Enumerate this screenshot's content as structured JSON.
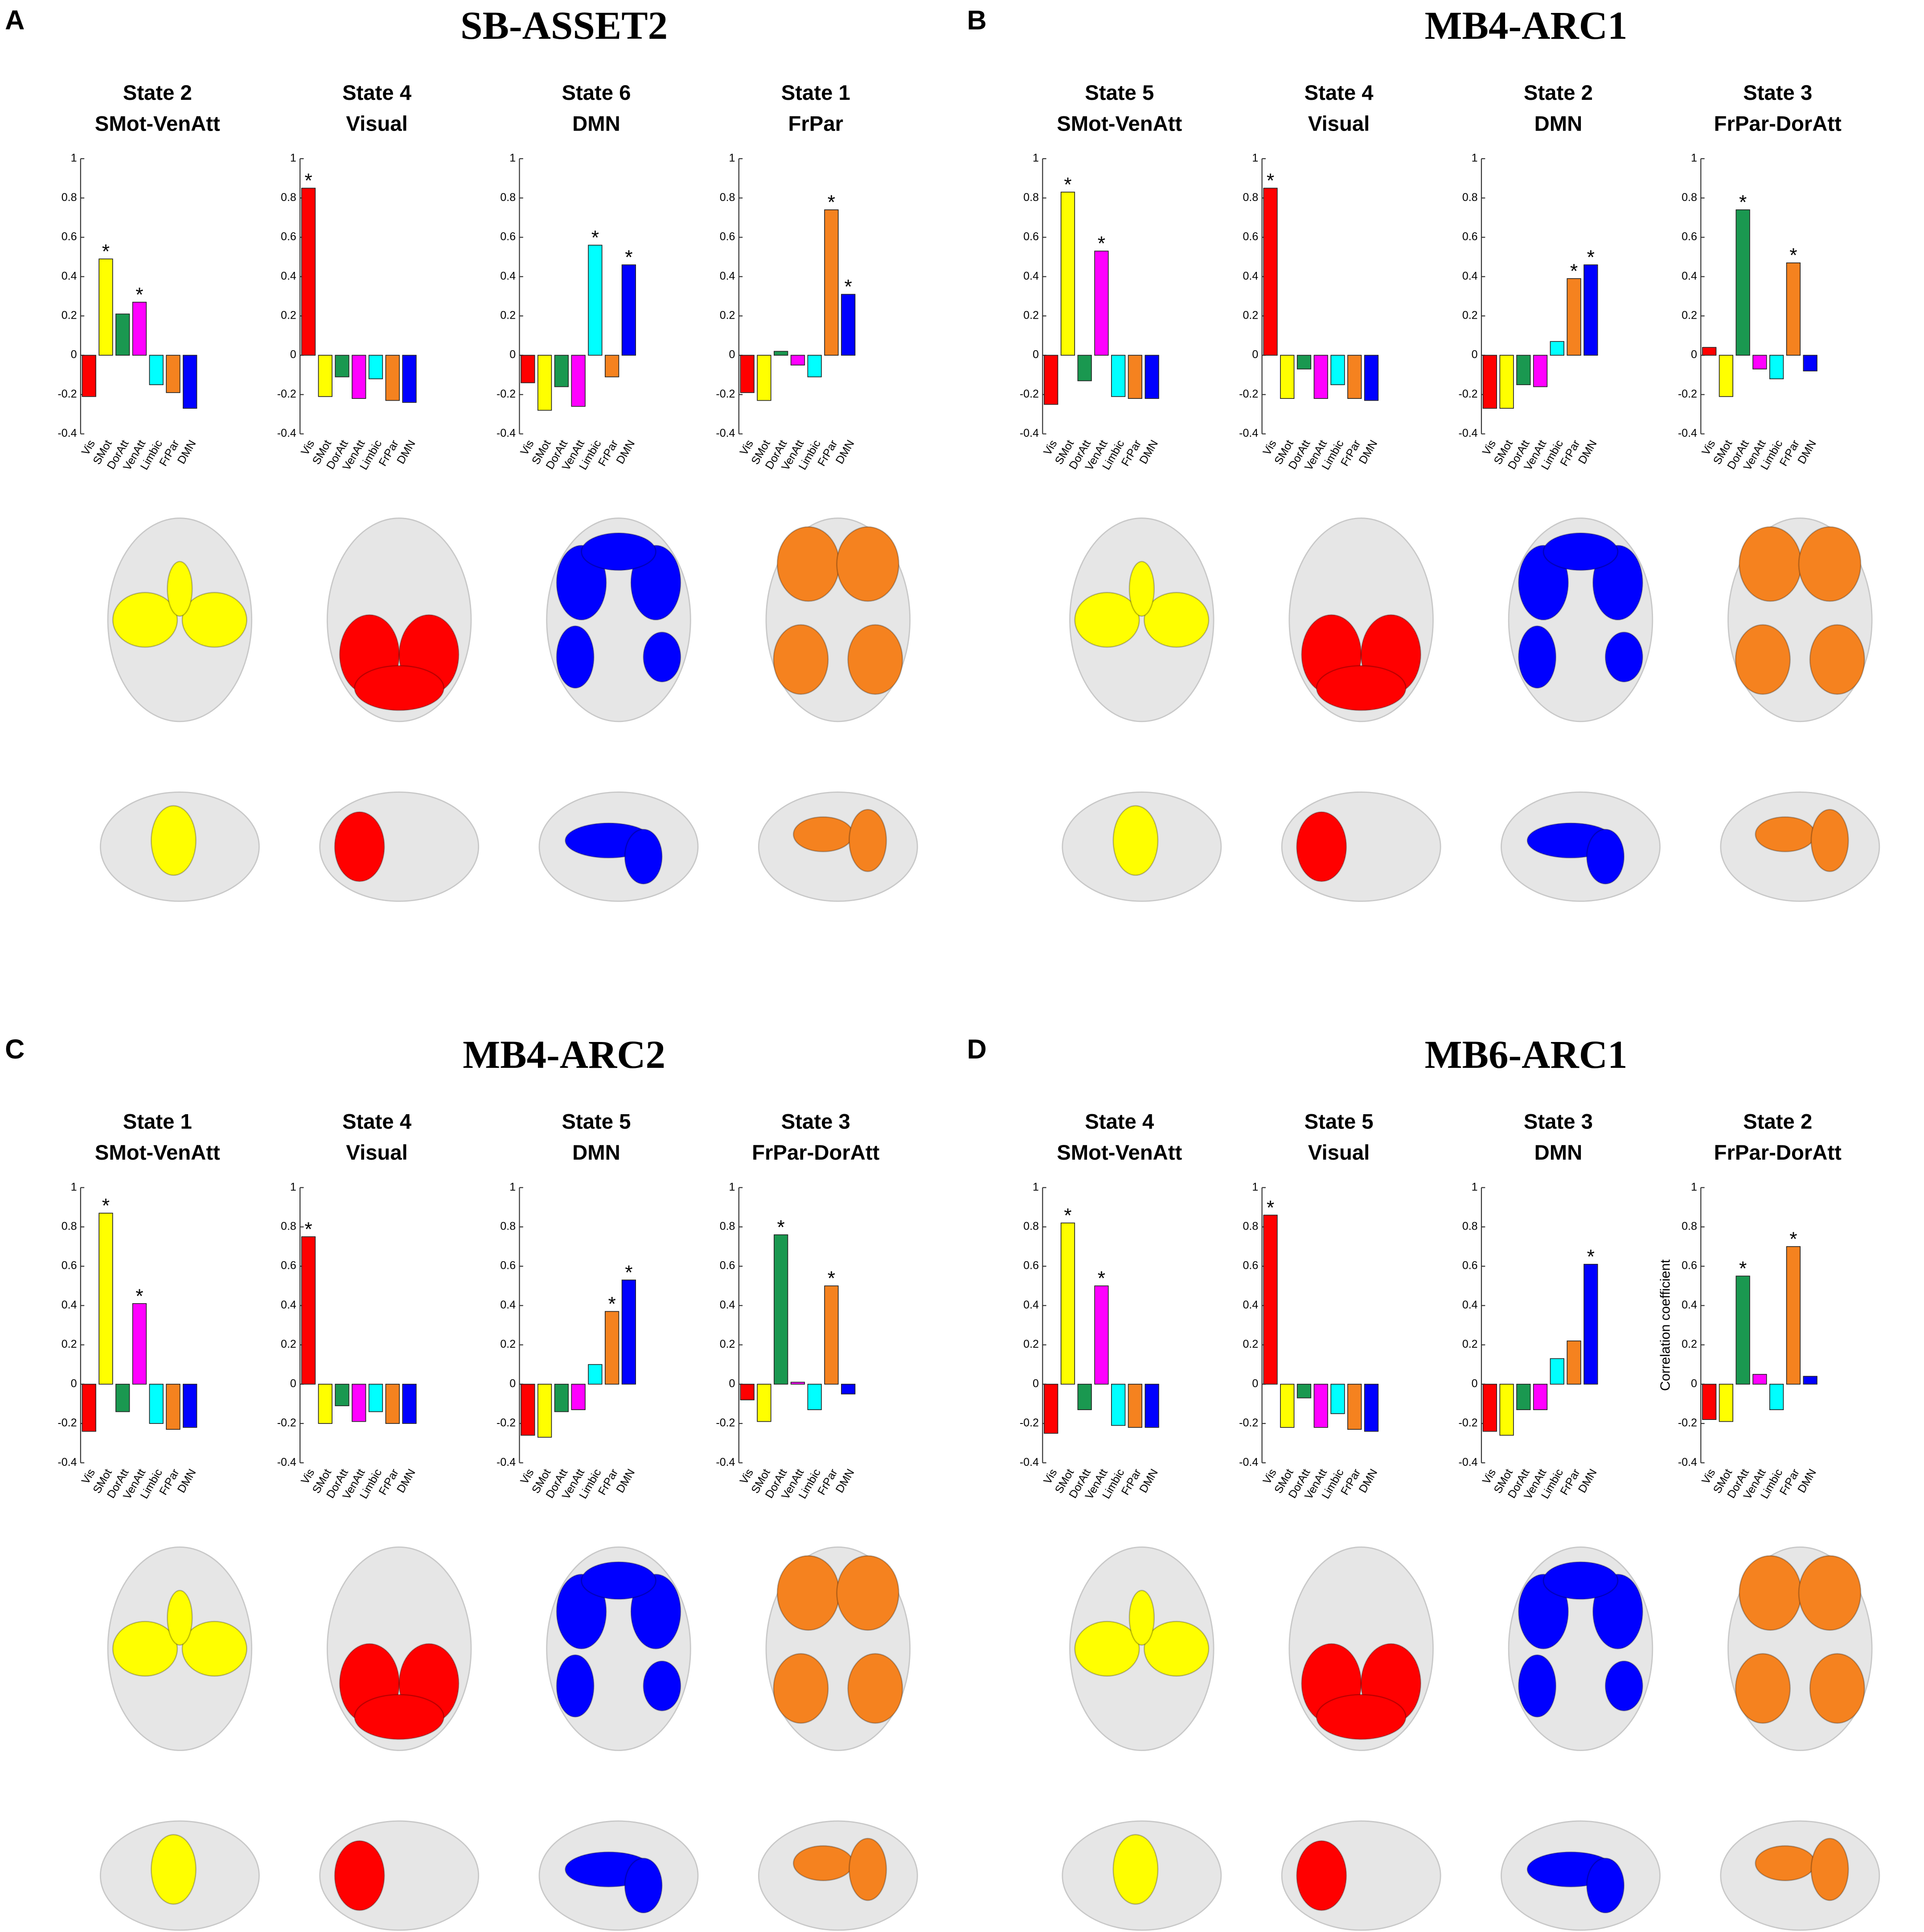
{
  "panels": [
    {
      "letter": "A",
      "title": "SB-ASSET2"
    },
    {
      "letter": "B",
      "title": "MB4-ARC1"
    },
    {
      "letter": "C",
      "title": "MB4-ARC2"
    },
    {
      "letter": "D",
      "title": "MB6-ARC1"
    }
  ],
  "chart_data": [
    {
      "type": "bar",
      "title": "State 2",
      "subtitle": "SMot-VenAtt",
      "categories": [
        "Vis",
        "SMot",
        "DorAtt",
        "VenAtt",
        "Limbic",
        "FrPar",
        "DMN"
      ],
      "values": [
        -0.21,
        0.49,
        0.21,
        0.27,
        -0.15,
        -0.19,
        -0.27
      ],
      "colors": [
        "#ff0000",
        "#ffff00",
        "#1a9850",
        "#ff00ff",
        "#00ffff",
        "#f5821f",
        "#0000ff"
      ],
      "annotation": "*",
      "marked": [
        1,
        3
      ],
      "ylim": [
        -0.4,
        1
      ],
      "yticks": [
        -0.4,
        -0.2,
        0,
        0.2,
        0.4,
        0.6,
        0.8,
        1
      ]
    },
    {
      "type": "bar",
      "title": "State 4",
      "subtitle": "Visual",
      "categories": [
        "Vis",
        "SMot",
        "DorAtt",
        "VenAtt",
        "Limbic",
        "FrPar",
        "DMN"
      ],
      "values": [
        0.85,
        -0.21,
        -0.11,
        -0.22,
        -0.12,
        -0.23,
        -0.24
      ],
      "colors": [
        "#ff0000",
        "#ffff00",
        "#1a9850",
        "#ff00ff",
        "#00ffff",
        "#f5821f",
        "#0000ff"
      ],
      "annotation": "*",
      "marked": [
        0
      ],
      "ylim": [
        -0.4,
        1
      ],
      "yticks": [
        -0.4,
        -0.2,
        0,
        0.2,
        0.4,
        0.6,
        0.8,
        1
      ]
    },
    {
      "type": "bar",
      "title": "State 6",
      "subtitle": "DMN",
      "categories": [
        "Vis",
        "SMot",
        "DorAtt",
        "VenAtt",
        "Limbic",
        "FrPar",
        "DMN"
      ],
      "values": [
        -0.14,
        -0.28,
        -0.16,
        -0.26,
        0.56,
        -0.11,
        0.46
      ],
      "colors": [
        "#ff0000",
        "#ffff00",
        "#1a9850",
        "#ff00ff",
        "#00ffff",
        "#f5821f",
        "#0000ff"
      ],
      "annotation": "*",
      "marked": [
        4,
        6
      ],
      "ylim": [
        -0.4,
        1
      ],
      "yticks": [
        -0.4,
        -0.2,
        0,
        0.2,
        0.4,
        0.6,
        0.8,
        1
      ]
    },
    {
      "type": "bar",
      "title": "State 1",
      "subtitle": "FrPar",
      "categories": [
        "Vis",
        "SMot",
        "DorAtt",
        "VenAtt",
        "Limbic",
        "FrPar",
        "DMN"
      ],
      "values": [
        -0.19,
        -0.23,
        0.02,
        -0.05,
        -0.11,
        0.74,
        0.31
      ],
      "colors": [
        "#ff0000",
        "#ffff00",
        "#1a9850",
        "#ff00ff",
        "#00ffff",
        "#f5821f",
        "#0000ff"
      ],
      "annotation": "*",
      "marked": [
        5,
        6
      ],
      "ylim": [
        -0.4,
        1
      ],
      "yticks": [
        -0.4,
        -0.2,
        0,
        0.2,
        0.4,
        0.6,
        0.8,
        1
      ]
    },
    {
      "type": "bar",
      "title": "State 5",
      "subtitle": "SMot-VenAtt",
      "categories": [
        "Vis",
        "SMot",
        "DorAtt",
        "VenAtt",
        "Limbic",
        "FrPar",
        "DMN"
      ],
      "values": [
        -0.25,
        0.83,
        -0.13,
        0.53,
        -0.21,
        -0.22,
        -0.22
      ],
      "colors": [
        "#ff0000",
        "#ffff00",
        "#1a9850",
        "#ff00ff",
        "#00ffff",
        "#f5821f",
        "#0000ff"
      ],
      "annotation": "*",
      "marked": [
        1,
        3
      ],
      "ylim": [
        -0.4,
        1
      ],
      "yticks": [
        -0.4,
        -0.2,
        0,
        0.2,
        0.4,
        0.6,
        0.8,
        1
      ]
    },
    {
      "type": "bar",
      "title": "State 4",
      "subtitle": "Visual",
      "categories": [
        "Vis",
        "SMot",
        "DorAtt",
        "VenAtt",
        "Limbic",
        "FrPar",
        "DMN"
      ],
      "values": [
        0.85,
        -0.22,
        -0.07,
        -0.22,
        -0.15,
        -0.22,
        -0.23
      ],
      "colors": [
        "#ff0000",
        "#ffff00",
        "#1a9850",
        "#ff00ff",
        "#00ffff",
        "#f5821f",
        "#0000ff"
      ],
      "annotation": "*",
      "marked": [
        0
      ],
      "ylim": [
        -0.4,
        1
      ],
      "yticks": [
        -0.4,
        -0.2,
        0,
        0.2,
        0.4,
        0.6,
        0.8,
        1
      ]
    },
    {
      "type": "bar",
      "title": "State 2",
      "subtitle": "DMN",
      "categories": [
        "Vis",
        "SMot",
        "DorAtt",
        "VenAtt",
        "Limbic",
        "FrPar",
        "DMN"
      ],
      "values": [
        -0.27,
        -0.27,
        -0.15,
        -0.16,
        0.07,
        0.39,
        0.46
      ],
      "colors": [
        "#ff0000",
        "#ffff00",
        "#1a9850",
        "#ff00ff",
        "#00ffff",
        "#f5821f",
        "#0000ff"
      ],
      "annotation": "*",
      "marked": [
        5,
        6
      ],
      "ylim": [
        -0.4,
        1
      ],
      "yticks": [
        -0.4,
        -0.2,
        0,
        0.2,
        0.4,
        0.6,
        0.8,
        1
      ]
    },
    {
      "type": "bar",
      "title": "State 3",
      "subtitle": "FrPar-DorAtt",
      "categories": [
        "Vis",
        "SMot",
        "DorAtt",
        "VenAtt",
        "Limbic",
        "FrPar",
        "DMN"
      ],
      "values": [
        0.04,
        -0.21,
        0.74,
        -0.07,
        -0.12,
        0.47,
        -0.08
      ],
      "colors": [
        "#ff0000",
        "#ffff00",
        "#1a9850",
        "#ff00ff",
        "#00ffff",
        "#f5821f",
        "#0000ff"
      ],
      "annotation": "*",
      "marked": [
        2,
        5
      ],
      "ylim": [
        -0.4,
        1
      ],
      "yticks": [
        -0.4,
        -0.2,
        0,
        0.2,
        0.4,
        0.6,
        0.8,
        1
      ]
    },
    {
      "type": "bar",
      "title": "State 1",
      "subtitle": "SMot-VenAtt",
      "categories": [
        "Vis",
        "SMot",
        "DorAtt",
        "VenAtt",
        "Limbic",
        "FrPar",
        "DMN"
      ],
      "values": [
        -0.24,
        0.87,
        -0.14,
        0.41,
        -0.2,
        -0.23,
        -0.22
      ],
      "colors": [
        "#ff0000",
        "#ffff00",
        "#1a9850",
        "#ff00ff",
        "#00ffff",
        "#f5821f",
        "#0000ff"
      ],
      "annotation": "*",
      "marked": [
        1,
        3
      ],
      "ylim": [
        -0.4,
        1
      ],
      "yticks": [
        -0.4,
        -0.2,
        0,
        0.2,
        0.4,
        0.6,
        0.8,
        1
      ]
    },
    {
      "type": "bar",
      "title": "State 4",
      "subtitle": "Visual",
      "categories": [
        "Vis",
        "SMot",
        "DorAtt",
        "VenAtt",
        "Limbic",
        "FrPar",
        "DMN"
      ],
      "values": [
        0.75,
        -0.2,
        -0.11,
        -0.19,
        -0.14,
        -0.2,
        -0.2
      ],
      "colors": [
        "#ff0000",
        "#ffff00",
        "#1a9850",
        "#ff00ff",
        "#00ffff",
        "#f5821f",
        "#0000ff"
      ],
      "annotation": "*",
      "marked": [
        0
      ],
      "ylim": [
        -0.4,
        1
      ],
      "yticks": [
        -0.4,
        -0.2,
        0,
        0.2,
        0.4,
        0.6,
        0.8,
        1
      ]
    },
    {
      "type": "bar",
      "title": "State 5",
      "subtitle": "DMN",
      "categories": [
        "Vis",
        "SMot",
        "DorAtt",
        "VenAtt",
        "Limbic",
        "FrPar",
        "DMN"
      ],
      "values": [
        -0.26,
        -0.27,
        -0.14,
        -0.13,
        0.1,
        0.37,
        0.53
      ],
      "colors": [
        "#ff0000",
        "#ffff00",
        "#1a9850",
        "#ff00ff",
        "#00ffff",
        "#f5821f",
        "#0000ff"
      ],
      "annotation": "*",
      "marked": [
        5,
        6
      ],
      "ylim": [
        -0.4,
        1
      ],
      "yticks": [
        -0.4,
        -0.2,
        0,
        0.2,
        0.4,
        0.6,
        0.8,
        1
      ]
    },
    {
      "type": "bar",
      "title": "State 3",
      "subtitle": "FrPar-DorAtt",
      "categories": [
        "Vis",
        "SMot",
        "DorAtt",
        "VenAtt",
        "Limbic",
        "FrPar",
        "DMN"
      ],
      "values": [
        -0.08,
        -0.19,
        0.76,
        0.01,
        -0.13,
        0.5,
        -0.05
      ],
      "colors": [
        "#ff0000",
        "#ffff00",
        "#1a9850",
        "#ff00ff",
        "#00ffff",
        "#f5821f",
        "#0000ff"
      ],
      "annotation": "*",
      "marked": [
        2,
        5
      ],
      "ylim": [
        -0.4,
        1
      ],
      "yticks": [
        -0.4,
        -0.2,
        0,
        0.2,
        0.4,
        0.6,
        0.8,
        1
      ]
    },
    {
      "type": "bar",
      "title": "State 4",
      "subtitle": "SMot-VenAtt",
      "categories": [
        "Vis",
        "SMot",
        "DorAtt",
        "VenAtt",
        "Limbic",
        "FrPar",
        "DMN"
      ],
      "values": [
        -0.25,
        0.82,
        -0.13,
        0.5,
        -0.21,
        -0.22,
        -0.22
      ],
      "colors": [
        "#ff0000",
        "#ffff00",
        "#1a9850",
        "#ff00ff",
        "#00ffff",
        "#f5821f",
        "#0000ff"
      ],
      "annotation": "*",
      "marked": [
        1,
        3
      ],
      "ylim": [
        -0.4,
        1
      ],
      "yticks": [
        -0.4,
        -0.2,
        0,
        0.2,
        0.4,
        0.6,
        0.8,
        1
      ]
    },
    {
      "type": "bar",
      "title": "State 5",
      "subtitle": "Visual",
      "categories": [
        "Vis",
        "SMot",
        "DorAtt",
        "VenAtt",
        "Limbic",
        "FrPar",
        "DMN"
      ],
      "values": [
        0.86,
        -0.22,
        -0.07,
        -0.22,
        -0.15,
        -0.23,
        -0.24
      ],
      "colors": [
        "#ff0000",
        "#ffff00",
        "#1a9850",
        "#ff00ff",
        "#00ffff",
        "#f5821f",
        "#0000ff"
      ],
      "annotation": "*",
      "marked": [
        0
      ],
      "ylim": [
        -0.4,
        1
      ],
      "yticks": [
        -0.4,
        -0.2,
        0,
        0.2,
        0.4,
        0.6,
        0.8,
        1
      ]
    },
    {
      "type": "bar",
      "title": "State 3",
      "subtitle": "DMN",
      "categories": [
        "Vis",
        "SMot",
        "DorAtt",
        "VenAtt",
        "Limbic",
        "FrPar",
        "DMN"
      ],
      "values": [
        -0.24,
        -0.26,
        -0.13,
        -0.13,
        0.13,
        0.22,
        0.61
      ],
      "colors": [
        "#ff0000",
        "#ffff00",
        "#1a9850",
        "#ff00ff",
        "#00ffff",
        "#f5821f",
        "#0000ff"
      ],
      "annotation": "*",
      "marked": [
        6
      ],
      "ylim": [
        -0.4,
        1
      ],
      "yticks": [
        -0.4,
        -0.2,
        0,
        0.2,
        0.4,
        0.6,
        0.8,
        1
      ]
    },
    {
      "type": "bar",
      "title": "State 2",
      "subtitle": "FrPar-DorAtt",
      "categories": [
        "Vis",
        "SMot",
        "DorAtt",
        "VenAtt",
        "Limbic",
        "FrPar",
        "DMN"
      ],
      "values": [
        -0.18,
        -0.19,
        0.55,
        0.05,
        -0.13,
        0.7,
        0.04
      ],
      "colors": [
        "#ff0000",
        "#ffff00",
        "#1a9850",
        "#ff00ff",
        "#00ffff",
        "#f5821f",
        "#0000ff"
      ],
      "annotation": "*",
      "marked": [
        2,
        5
      ],
      "ylabel": "Correlation coefficient",
      "ylim": [
        -0.4,
        1
      ],
      "yticks": [
        -0.4,
        -0.2,
        0,
        0.2,
        0.4,
        0.6,
        0.8,
        1
      ]
    }
  ]
}
